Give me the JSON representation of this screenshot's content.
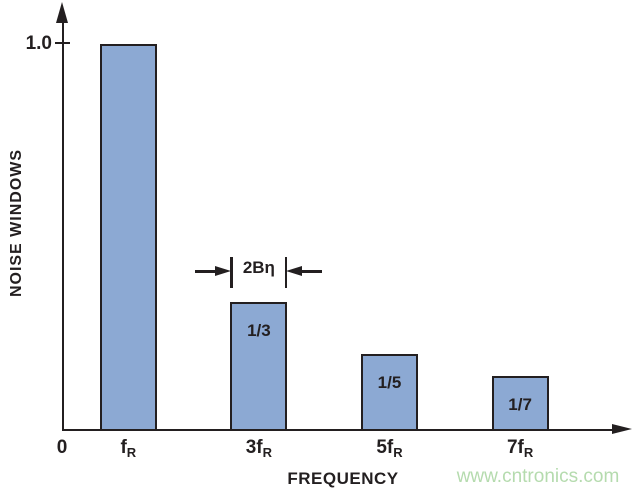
{
  "chart_data": {
    "type": "bar",
    "title": "",
    "xlabel": "FREQUENCY",
    "ylabel": "NOISE WINDOWS",
    "x": [
      1,
      3,
      5,
      7
    ],
    "values": [
      1.0,
      0.3333,
      0.2,
      0.1429
    ],
    "bar_value_labels": [
      "",
      "1/3",
      "1/5",
      "1/7"
    ],
    "categories": [
      {
        "pre": "f",
        "sub": "R"
      },
      {
        "pre": "3f",
        "sub": "R"
      },
      {
        "pre": "5f",
        "sub": "R"
      },
      {
        "pre": "7f",
        "sub": "R"
      }
    ],
    "origin_label": "0",
    "y_tick_label": "1.0",
    "ylim": [
      0,
      1.08
    ],
    "grid": false,
    "legend": false,
    "annotation": {
      "label": "2Bη",
      "bar_index": 1
    }
  },
  "colors": {
    "ink": "#231f20",
    "bar_fill": "#8ca9d3",
    "watermark_green": "#b5dbae",
    "background": "#ffffff"
  },
  "watermark": {
    "text": "www.cntronics.com"
  }
}
